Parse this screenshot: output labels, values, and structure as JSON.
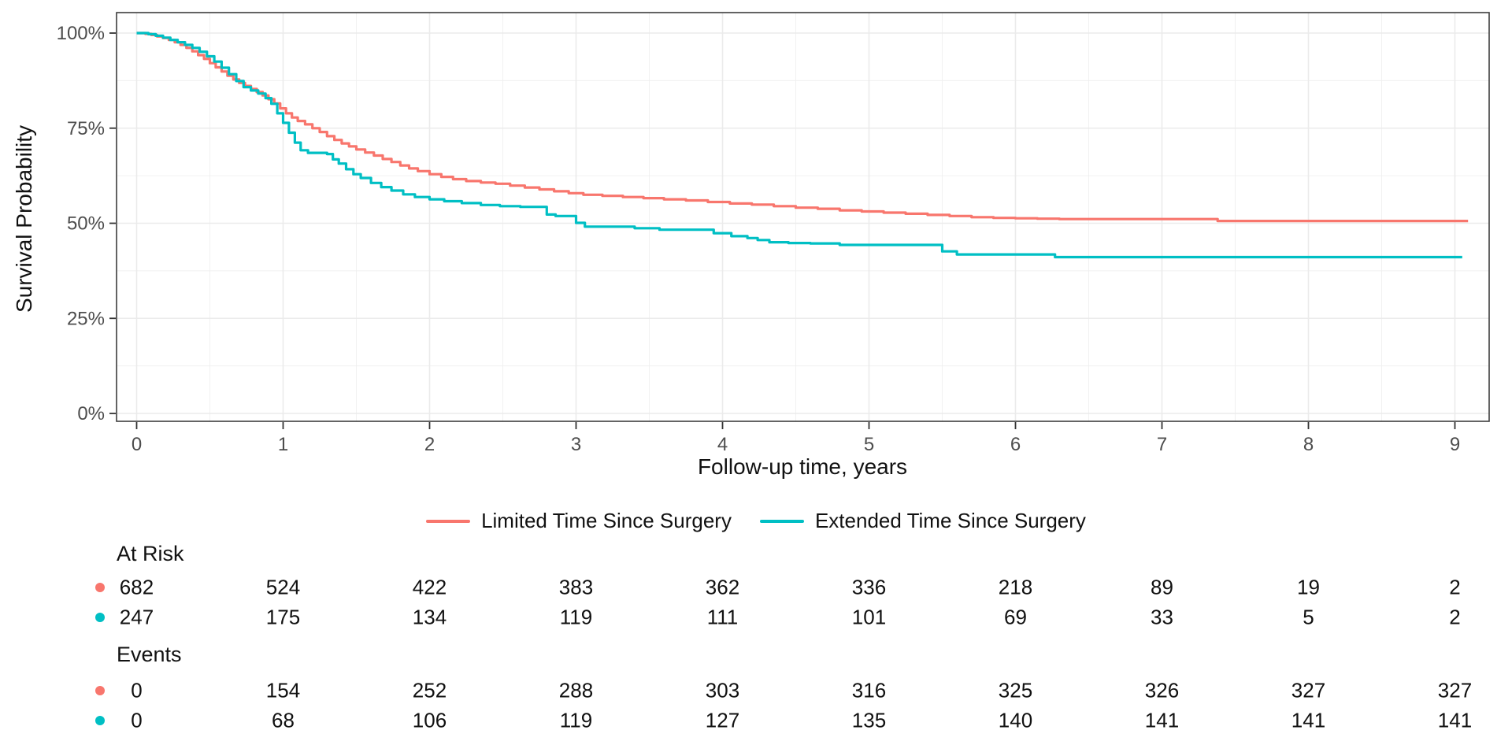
{
  "chart_data": {
    "type": "line",
    "subtype": "kaplan-meier-step",
    "title": "",
    "xlabel": "Follow-up time, years",
    "ylabel": "Survival Probability",
    "x_ticks": [
      0,
      1,
      2,
      3,
      4,
      5,
      6,
      7,
      8,
      9
    ],
    "y_ticks": [
      {
        "value": 0,
        "label": "0%"
      },
      {
        "value": 25,
        "label": "25%"
      },
      {
        "value": 50,
        "label": "50%"
      },
      {
        "value": 75,
        "label": "75%"
      },
      {
        "value": 100,
        "label": "100%"
      }
    ],
    "xlim": [
      -0.14,
      9.23
    ],
    "ylim": [
      -2,
      105
    ],
    "grid": "major-and-minor",
    "legend_position": "bottom",
    "colors": {
      "limited": "#F8766D",
      "extended": "#00BFC4",
      "grid_major": "#EBEBEB",
      "grid_minor": "#F0F0F0",
      "panel_border": "#3d3d3d",
      "tick_text": "#4d4d4d"
    },
    "series": [
      {
        "name": "Limited Time Since Surgery",
        "color": "#F8766D",
        "end_time": 9.09,
        "points": [
          [
            0,
            100
          ],
          [
            0.06,
            99.8
          ],
          [
            0.1,
            99.5
          ],
          [
            0.14,
            99.1
          ],
          [
            0.18,
            98.7
          ],
          [
            0.22,
            98.2
          ],
          [
            0.26,
            97.6
          ],
          [
            0.3,
            96.9
          ],
          [
            0.34,
            96.1
          ],
          [
            0.38,
            95.2
          ],
          [
            0.42,
            94.2
          ],
          [
            0.46,
            93.2
          ],
          [
            0.5,
            92.1
          ],
          [
            0.54,
            91
          ],
          [
            0.58,
            89.9
          ],
          [
            0.62,
            88.8
          ],
          [
            0.66,
            87.8
          ],
          [
            0.7,
            86.9
          ],
          [
            0.74,
            86.1
          ],
          [
            0.78,
            85.3
          ],
          [
            0.82,
            84.5
          ],
          [
            0.86,
            83.6
          ],
          [
            0.9,
            82.6
          ],
          [
            0.94,
            81.5
          ],
          [
            0.98,
            80.2
          ],
          [
            1.02,
            78.9
          ],
          [
            1.06,
            77.8
          ],
          [
            1.1,
            76.9
          ],
          [
            1.15,
            76
          ],
          [
            1.2,
            75
          ],
          [
            1.25,
            74
          ],
          [
            1.3,
            72.9
          ],
          [
            1.35,
            71.9
          ],
          [
            1.4,
            71
          ],
          [
            1.45,
            70.2
          ],
          [
            1.5,
            69.4
          ],
          [
            1.56,
            68.6
          ],
          [
            1.62,
            67.8
          ],
          [
            1.68,
            66.9
          ],
          [
            1.74,
            66.1
          ],
          [
            1.8,
            65.2
          ],
          [
            1.86,
            64.4
          ],
          [
            1.92,
            63.7
          ],
          [
            2,
            62.9
          ],
          [
            2.08,
            62.2
          ],
          [
            2.16,
            61.6
          ],
          [
            2.25,
            61.1
          ],
          [
            2.35,
            60.7
          ],
          [
            2.45,
            60.4
          ],
          [
            2.55,
            59.9
          ],
          [
            2.65,
            59.4
          ],
          [
            2.75,
            58.9
          ],
          [
            2.85,
            58.4
          ],
          [
            2.95,
            57.9
          ],
          [
            3.05,
            57.5
          ],
          [
            3.18,
            57.2
          ],
          [
            3.32,
            56.9
          ],
          [
            3.46,
            56.6
          ],
          [
            3.6,
            56.3
          ],
          [
            3.75,
            56
          ],
          [
            3.9,
            55.6
          ],
          [
            4.05,
            55.2
          ],
          [
            4.2,
            54.9
          ],
          [
            4.35,
            54.5
          ],
          [
            4.5,
            54.1
          ],
          [
            4.65,
            53.8
          ],
          [
            4.8,
            53.4
          ],
          [
            4.95,
            53.1
          ],
          [
            5.1,
            52.8
          ],
          [
            5.25,
            52.5
          ],
          [
            5.4,
            52.2
          ],
          [
            5.55,
            51.9
          ],
          [
            5.7,
            51.6
          ],
          [
            5.85,
            51.4
          ],
          [
            6,
            51.3
          ],
          [
            6.15,
            51.2
          ],
          [
            6.3,
            51.1
          ],
          [
            7.38,
            50.6
          ]
        ]
      },
      {
        "name": "Extended Time Since Surgery",
        "color": "#00BFC4",
        "end_time": 9.05,
        "points": [
          [
            0,
            100
          ],
          [
            0.08,
            99.7
          ],
          [
            0.13,
            99.3
          ],
          [
            0.18,
            98.8
          ],
          [
            0.23,
            98.2
          ],
          [
            0.28,
            97.6
          ],
          [
            0.33,
            96.9
          ],
          [
            0.38,
            96.1
          ],
          [
            0.43,
            95.1
          ],
          [
            0.48,
            93.9
          ],
          [
            0.53,
            92.5
          ],
          [
            0.58,
            90.9
          ],
          [
            0.63,
            89.2
          ],
          [
            0.68,
            87.4
          ],
          [
            0.73,
            85.8
          ],
          [
            0.78,
            84.9
          ],
          [
            0.83,
            84.1
          ],
          [
            0.88,
            82.9
          ],
          [
            0.92,
            81.4
          ],
          [
            0.96,
            78.9
          ],
          [
            1,
            76.4
          ],
          [
            1.04,
            73.8
          ],
          [
            1.08,
            71.2
          ],
          [
            1.12,
            69.2
          ],
          [
            1.17,
            68.5
          ],
          [
            1.3,
            68.2
          ],
          [
            1.34,
            66.8
          ],
          [
            1.38,
            65.7
          ],
          [
            1.43,
            64.2
          ],
          [
            1.48,
            62.9
          ],
          [
            1.53,
            61.9
          ],
          [
            1.6,
            60.6
          ],
          [
            1.67,
            59.5
          ],
          [
            1.74,
            58.6
          ],
          [
            1.82,
            57.6
          ],
          [
            1.9,
            56.9
          ],
          [
            2,
            56.3
          ],
          [
            2.1,
            55.8
          ],
          [
            2.22,
            55.3
          ],
          [
            2.35,
            54.8
          ],
          [
            2.48,
            54.5
          ],
          [
            2.62,
            54.3
          ],
          [
            2.8,
            52.3
          ],
          [
            2.86,
            51.9
          ],
          [
            3,
            50.1
          ],
          [
            3.06,
            49.1
          ],
          [
            3.4,
            48.7
          ],
          [
            3.57,
            48.3
          ],
          [
            3.94,
            47.4
          ],
          [
            4.06,
            46.6
          ],
          [
            4.17,
            46.1
          ],
          [
            4.24,
            45.6
          ],
          [
            4.32,
            45
          ],
          [
            4.45,
            44.8
          ],
          [
            4.6,
            44.7
          ],
          [
            4.8,
            44.3
          ],
          [
            5.5,
            42.6
          ],
          [
            5.6,
            41.8
          ],
          [
            6.27,
            41.1
          ]
        ]
      }
    ],
    "risk_table": {
      "at_risk_label": "At Risk",
      "events_label": "Events",
      "times": [
        0,
        1,
        2,
        3,
        4,
        5,
        6,
        7,
        8,
        9
      ],
      "at_risk": [
        [
          682,
          524,
          422,
          383,
          362,
          336,
          218,
          89,
          19,
          2
        ],
        [
          247,
          175,
          134,
          119,
          111,
          101,
          69,
          33,
          5,
          2
        ]
      ],
      "events": [
        [
          0,
          154,
          252,
          288,
          303,
          316,
          325,
          326,
          327,
          327
        ],
        [
          0,
          68,
          106,
          119,
          127,
          135,
          140,
          141,
          141,
          141
        ]
      ]
    }
  }
}
